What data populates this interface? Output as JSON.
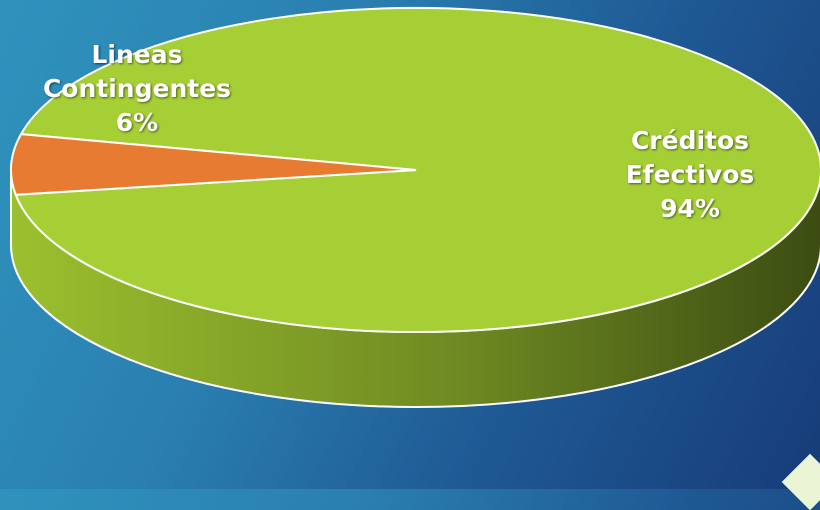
{
  "chart_data": {
    "type": "pie",
    "style": "3d",
    "slices": [
      {
        "label_lines": [
          "Créditos",
          "Efectivos"
        ],
        "percent_label": "94%",
        "value": 94,
        "color": "#a6cf35"
      },
      {
        "label_lines": [
          "Lineas",
          "Contingentes"
        ],
        "percent_label": "6%",
        "value": 6,
        "color": "#e77b31"
      }
    ],
    "legend": "none"
  },
  "colors": {
    "side_light": "#9bc02e",
    "side_dark": "#3c4c12",
    "outline": "#ffffff"
  }
}
